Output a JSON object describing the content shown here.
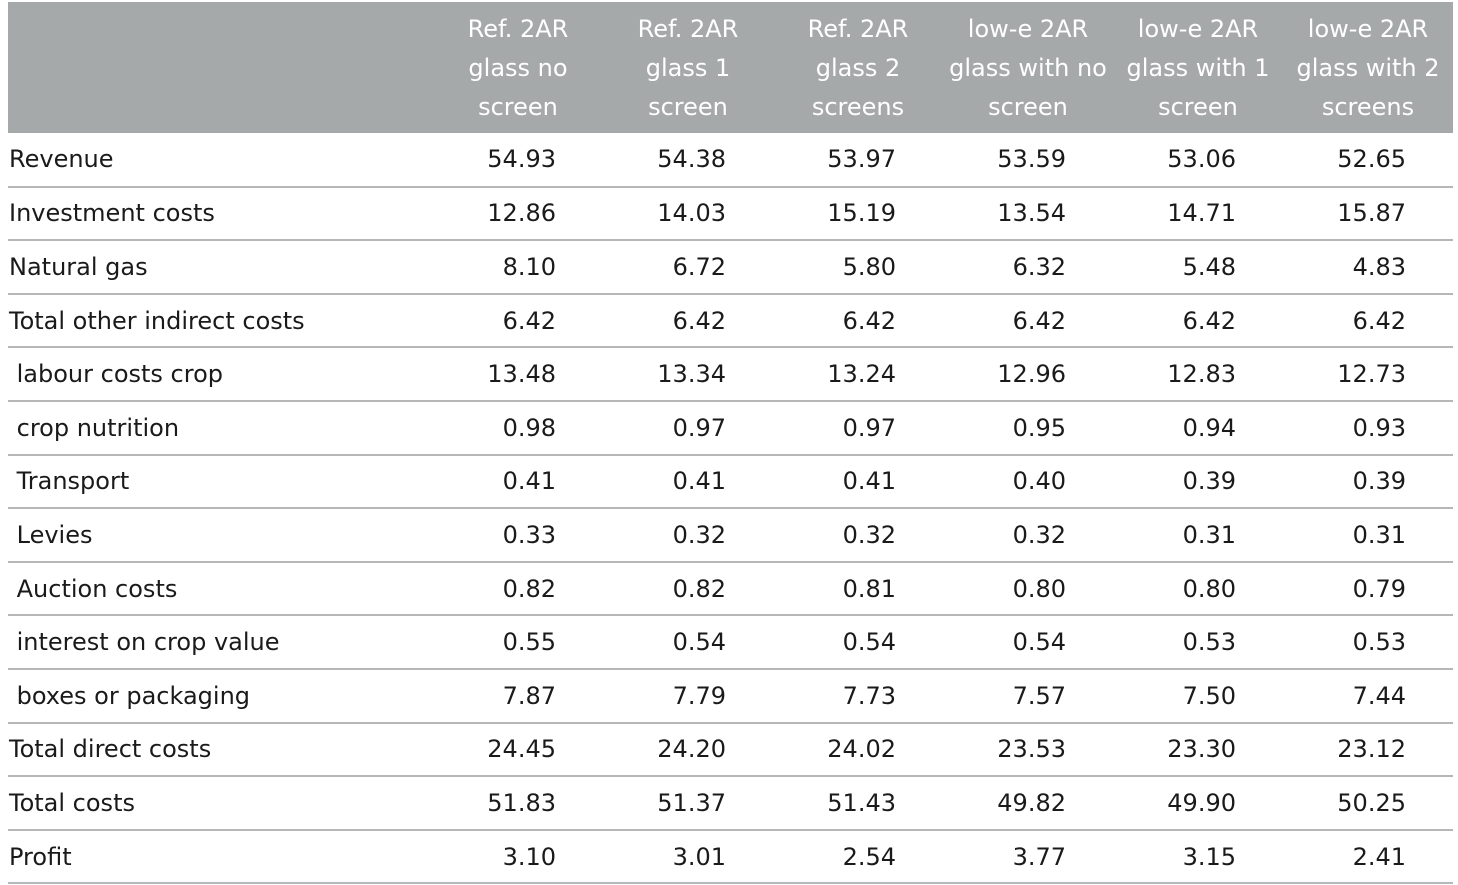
{
  "table": {
    "columns": [
      {
        "lines": [
          "Ref. 2AR",
          "glass no",
          "screen"
        ]
      },
      {
        "lines": [
          "Ref. 2AR",
          "glass 1",
          "screen"
        ]
      },
      {
        "lines": [
          "Ref. 2AR",
          "glass 2",
          "screens"
        ]
      },
      {
        "lines": [
          "low-e 2AR",
          "glass with no",
          "screen"
        ]
      },
      {
        "lines": [
          "low-e 2AR",
          "glass with 1",
          "screen"
        ]
      },
      {
        "lines": [
          "low-e 2AR",
          "glass with 2",
          "screens"
        ]
      }
    ],
    "rows": [
      {
        "label": "Revenue",
        "values": [
          "54.93",
          "54.38",
          "53.97",
          "53.59",
          "53.06",
          "52.65"
        ]
      },
      {
        "label": "Investment costs",
        "values": [
          "12.86",
          "14.03",
          "15.19",
          "13.54",
          "14.71",
          "15.87"
        ]
      },
      {
        "label": "Natural gas",
        "values": [
          "8.10",
          "6.72",
          "5.80",
          "6.32",
          "5.48",
          "4.83"
        ]
      },
      {
        "label": "Total other indirect costs",
        "values": [
          "6.42",
          "6.42",
          "6.42",
          "6.42",
          "6.42",
          "6.42"
        ]
      },
      {
        "label": " labour costs crop",
        "values": [
          "13.48",
          "13.34",
          "13.24",
          "12.96",
          "12.83",
          "12.73"
        ]
      },
      {
        "label": " crop nutrition",
        "values": [
          "0.98",
          "0.97",
          "0.97",
          "0.95",
          "0.94",
          "0.93"
        ]
      },
      {
        "label": " Transport",
        "values": [
          "0.41",
          "0.41",
          "0.41",
          "0.40",
          "0.39",
          "0.39"
        ]
      },
      {
        "label": " Levies",
        "values": [
          "0.33",
          "0.32",
          "0.32",
          "0.32",
          "0.31",
          "0.31"
        ]
      },
      {
        "label": " Auction costs",
        "values": [
          "0.82",
          "0.82",
          "0.81",
          "0.80",
          "0.80",
          "0.79"
        ]
      },
      {
        "label": " interest on crop value",
        "values": [
          "0.55",
          "0.54",
          "0.54",
          "0.54",
          "0.53",
          "0.53"
        ]
      },
      {
        "label": " boxes or packaging",
        "values": [
          "7.87",
          "7.79",
          "7.73",
          "7.57",
          "7.50",
          "7.44"
        ]
      },
      {
        "label": "Total direct costs",
        "values": [
          "24.45",
          "24.20",
          "24.02",
          "23.53",
          "23.30",
          "23.12"
        ]
      },
      {
        "label": "Total costs",
        "values": [
          "51.83",
          "51.37",
          "51.43",
          "49.82",
          "49.90",
          "50.25"
        ]
      },
      {
        "label": "Profit",
        "values": [
          "3.10",
          "3.01",
          "2.54",
          "3.77",
          "3.15",
          "2.41"
        ]
      }
    ]
  },
  "colors": {
    "header_bg": "#a6a9aa",
    "header_text": "#ffffff",
    "row_border": "#b5b7b8"
  }
}
